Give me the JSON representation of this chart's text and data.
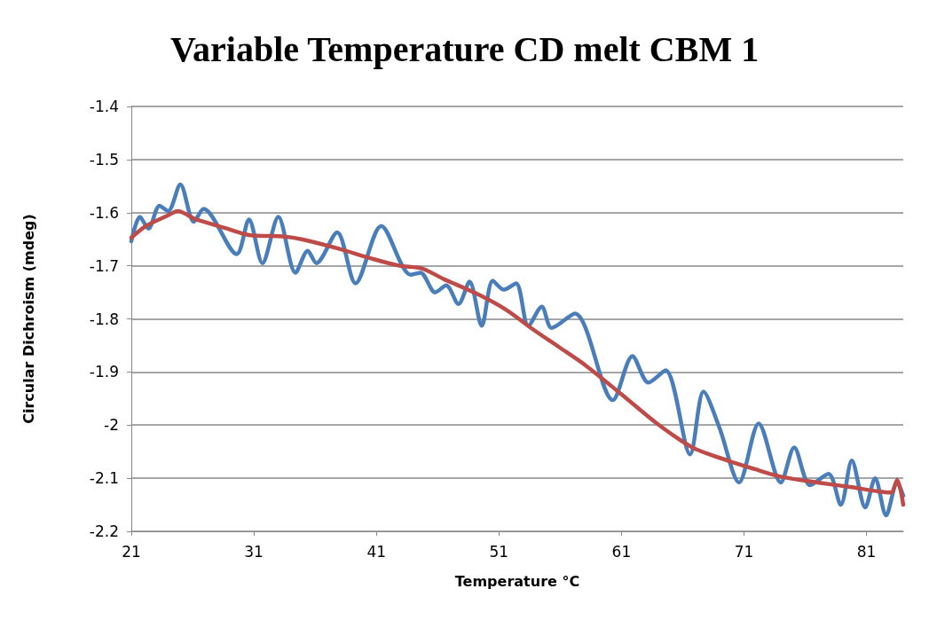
{
  "chart_data": {
    "type": "line",
    "title": "Variable Temperature CD melt CBM 1",
    "xlabel": "Temperature °C",
    "ylabel": "Circular Dichroism (mdeg)",
    "series": [
      {
        "color": "#4a7ebb",
        "x": [
          21.0,
          21.7,
          22.4,
          23.3,
          24.0,
          25.0,
          26.1,
          26.9,
          29.6,
          30.6,
          31.7,
          33.0,
          34.4,
          35.4,
          36.1,
          37.8,
          39.3,
          41.4,
          43.8,
          44.6,
          45.8,
          46.7,
          47.7,
          48.6,
          49.6,
          50.5,
          51.4,
          52.4,
          53.4,
          54.5,
          55.3,
          57.2,
          60.3,
          61.9,
          63.2,
          64.6,
          66.6,
          67.7,
          69.0,
          70.6,
          72.2,
          74.0,
          75.1,
          76.4,
          77.9,
          78.9,
          79.8,
          80.9,
          81.7,
          82.6,
          83.5,
          84.0
        ],
        "values": [
          -1.654,
          -1.608,
          -1.63,
          -1.587,
          -1.597,
          -1.547,
          -1.617,
          -1.593,
          -1.678,
          -1.613,
          -1.695,
          -1.608,
          -1.713,
          -1.672,
          -1.695,
          -1.637,
          -1.733,
          -1.625,
          -1.717,
          -1.713,
          -1.75,
          -1.737,
          -1.772,
          -1.73,
          -1.813,
          -1.728,
          -1.745,
          -1.733,
          -1.813,
          -1.777,
          -1.817,
          -1.79,
          -1.953,
          -1.87,
          -1.92,
          -1.897,
          -2.055,
          -1.937,
          -2.005,
          -2.108,
          -1.997,
          -2.108,
          -2.042,
          -2.113,
          -2.092,
          -2.15,
          -2.067,
          -2.155,
          -2.1,
          -2.17,
          -2.108,
          -2.133
        ]
      },
      {
        "color": "#be4b48",
        "x": [
          21.0,
          22.2,
          24.0,
          24.8,
          26.2,
          26.9,
          28.8,
          30.6,
          33.5,
          34.9,
          37.8,
          40.7,
          42.9,
          44.7,
          46.5,
          49.4,
          51.6,
          53.8,
          55.9,
          58.1,
          61.0,
          63.9,
          66.8,
          69.7,
          71.9,
          74.0,
          77.0,
          79.8,
          82.0,
          83.0,
          83.5,
          84.0
        ],
        "values": [
          -1.647,
          -1.625,
          -1.605,
          -1.597,
          -1.612,
          -1.617,
          -1.63,
          -1.642,
          -1.645,
          -1.65,
          -1.667,
          -1.687,
          -1.7,
          -1.705,
          -1.725,
          -1.755,
          -1.783,
          -1.82,
          -1.853,
          -1.888,
          -1.942,
          -1.997,
          -2.042,
          -2.067,
          -2.083,
          -2.097,
          -2.108,
          -2.117,
          -2.125,
          -2.127,
          -2.103,
          -2.15
        ]
      }
    ],
    "xlim": [
      21,
      84
    ],
    "xticks": [
      21,
      31,
      41,
      51,
      61,
      71,
      81
    ],
    "ylim": [
      -2.2,
      -1.4
    ],
    "yticks": [
      -2.2,
      -2.1,
      -2,
      -1.9,
      -1.8,
      -1.7,
      -1.6,
      -1.5,
      -1.4
    ],
    "grid": "y",
    "marker": "none",
    "line_style": "solid"
  }
}
